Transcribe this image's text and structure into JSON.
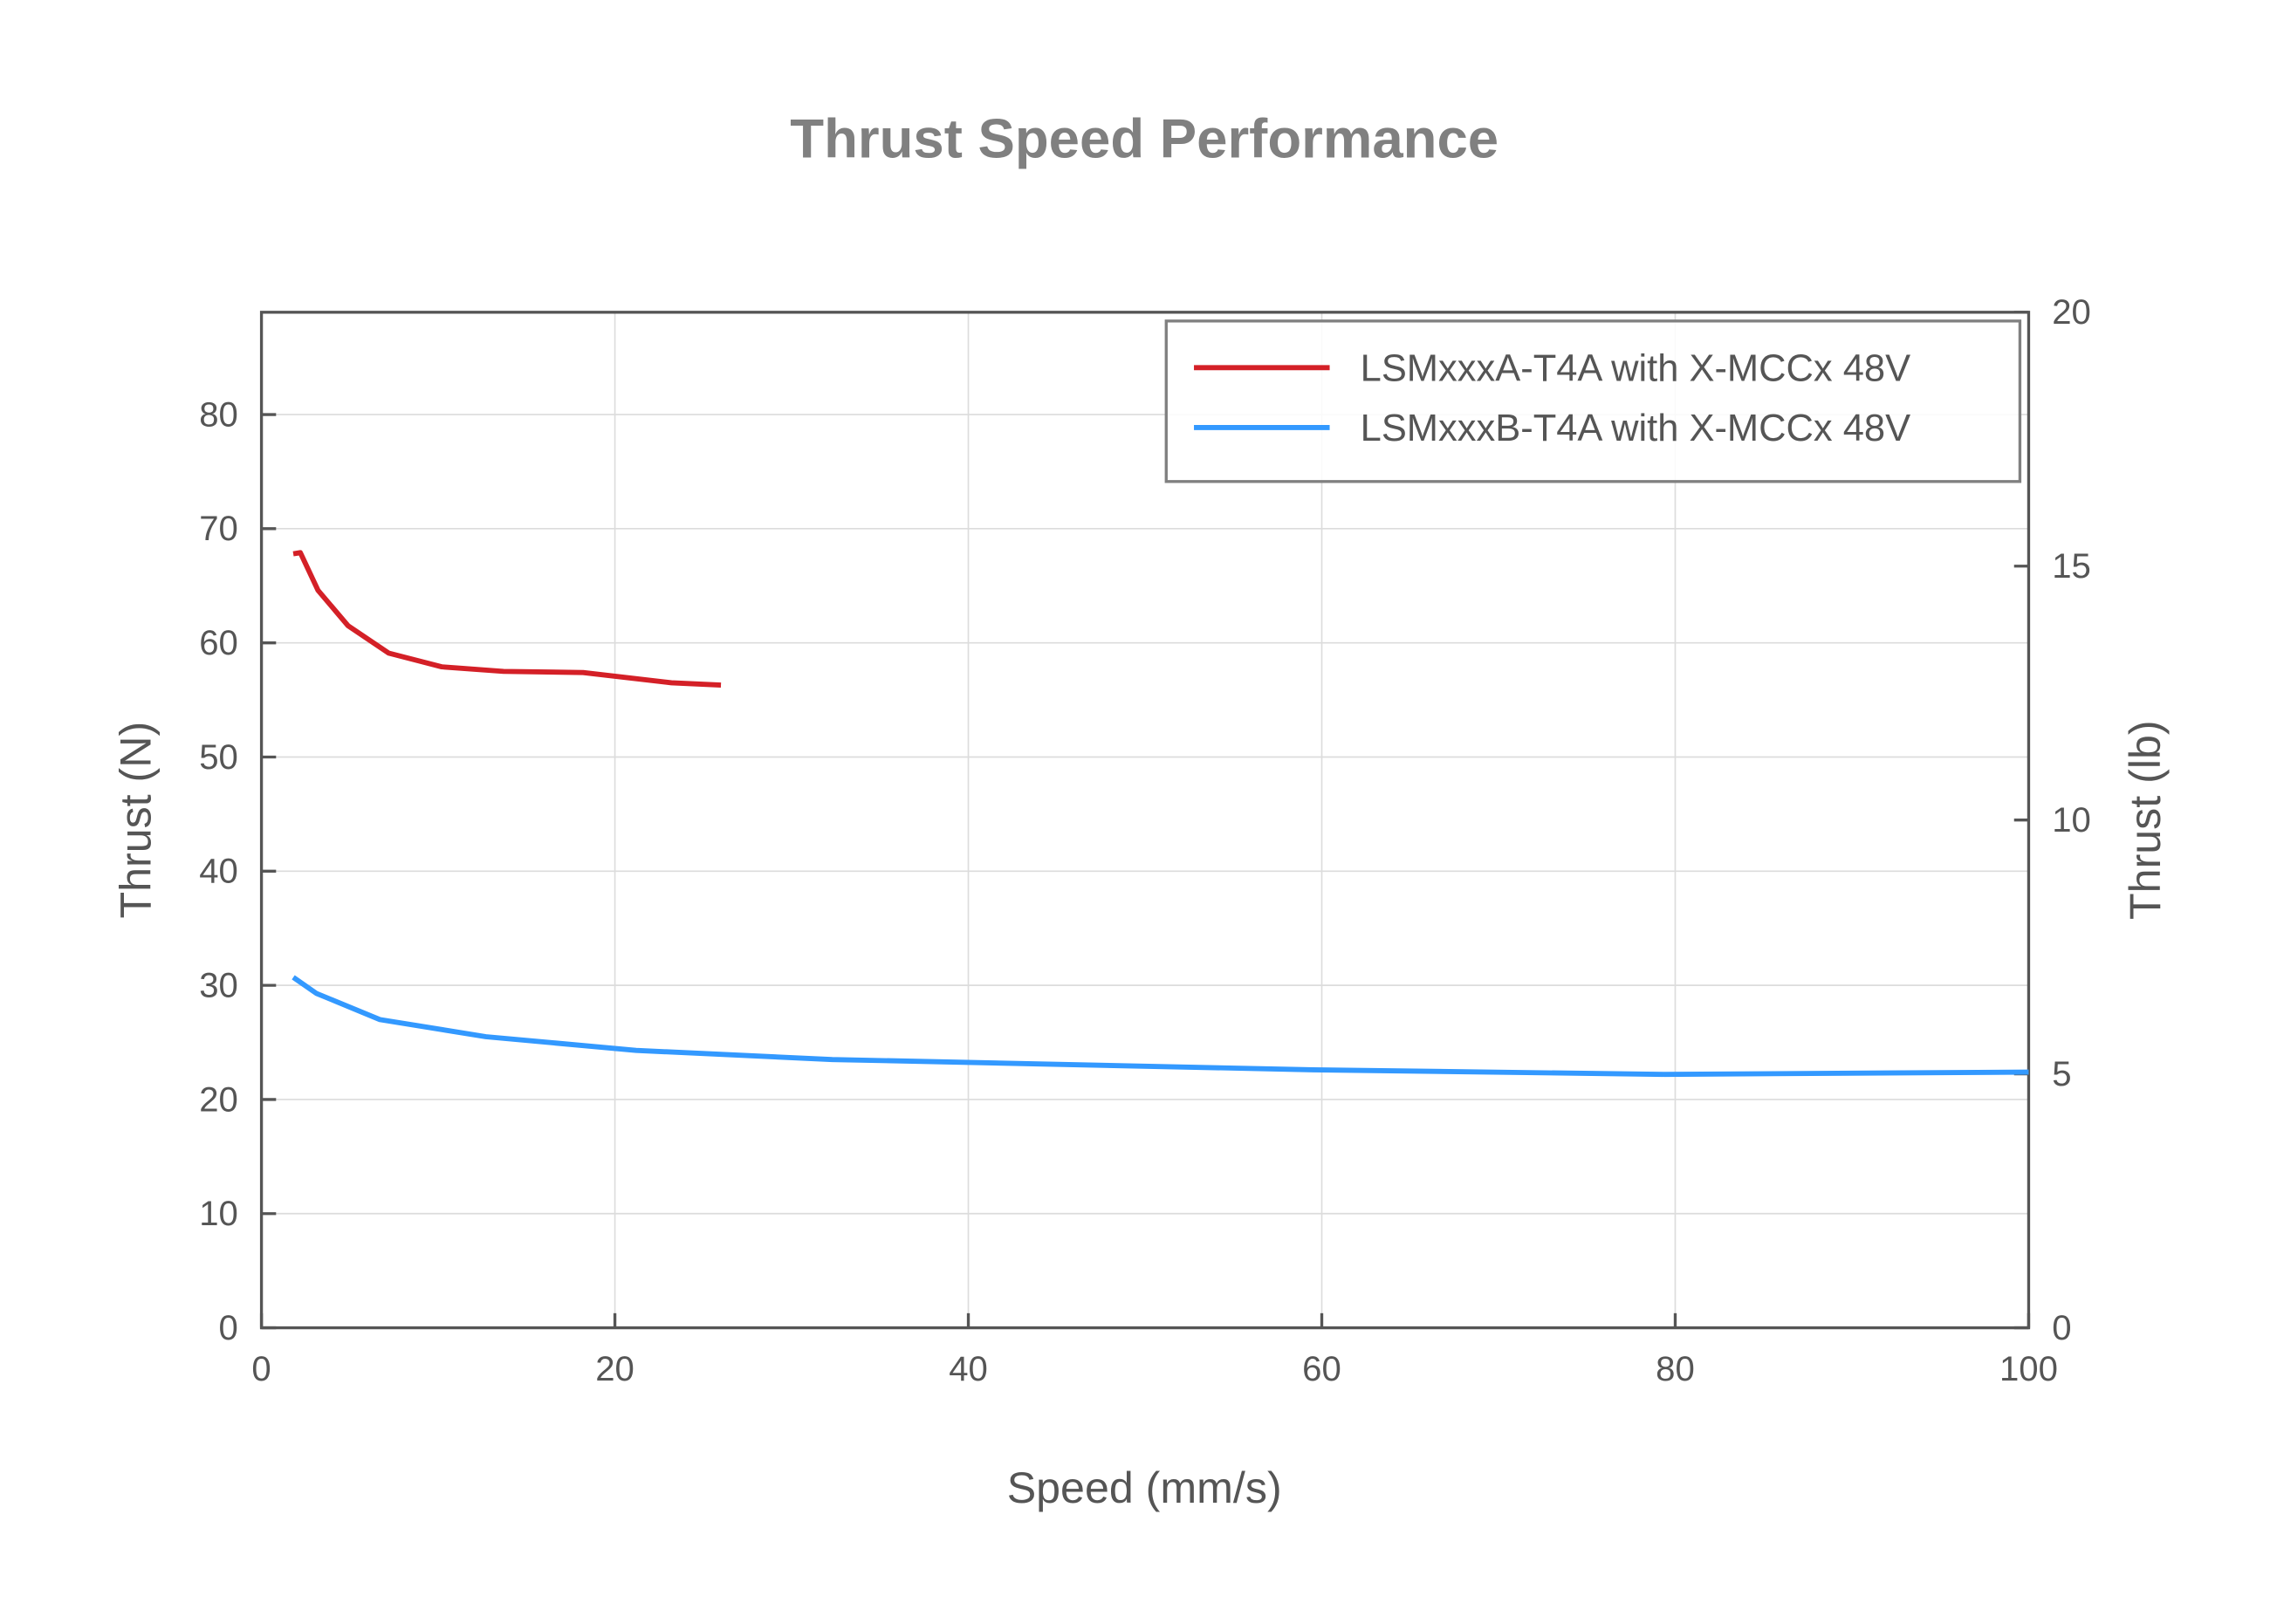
{
  "chart_data": {
    "type": "line",
    "title": "Thrust Speed Performance",
    "xlabel": "Speed (mm/s)",
    "ylabel": "Thrust (N)",
    "y2label": "Thrust (lb)",
    "xlim": [
      0,
      100
    ],
    "ylim": [
      0,
      88.96
    ],
    "y2lim": [
      0,
      20
    ],
    "xticks": [
      "0",
      "20",
      "40",
      "60",
      "80",
      "100"
    ],
    "yticks": [
      "0",
      "10",
      "20",
      "30",
      "40",
      "50",
      "60",
      "70",
      "80"
    ],
    "y2ticks": [
      "0",
      "5",
      "10",
      "15",
      "20"
    ],
    "grid": true,
    "legend_position": "top-right",
    "series": [
      {
        "name": "LSMxxxA-T4A with X-MCCx 48V",
        "color": "#d42027",
        "x": [
          1.8,
          2.2,
          3.2,
          4.9,
          7.2,
          10.2,
          13.7,
          18.2,
          23.2,
          26.0
        ],
        "y": [
          67.8,
          67.9,
          64.6,
          61.5,
          59.1,
          57.9,
          57.5,
          57.4,
          56.5,
          56.3
        ]
      },
      {
        "name": "LSMxxxB-T4A with X-MCCx 48V",
        "color": "#3399ff",
        "x": [
          1.8,
          3.1,
          6.7,
          12.7,
          21.2,
          32.3,
          59.5,
          79.4,
          100
        ],
        "y": [
          30.7,
          29.3,
          27.0,
          25.5,
          24.3,
          23.5,
          22.6,
          22.2,
          22.4
        ]
      }
    ]
  }
}
